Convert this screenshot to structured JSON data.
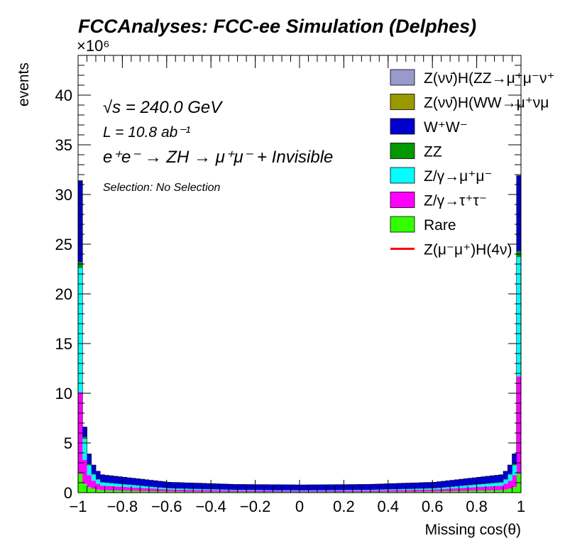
{
  "chart_data": {
    "type": "histogram-stacked",
    "title": "FCCAnalyses: FCC-ee Simulation (Delphes)",
    "xlabel": "Missing cos(θ)",
    "ylabel": "events",
    "y_multiplier": "×10⁶",
    "xlim": [
      -1,
      1
    ],
    "ylim": [
      0,
      44
    ],
    "x_ticks": [
      "−1",
      "−0.8",
      "−0.6",
      "−0.4",
      "−0.2",
      "0",
      "0.2",
      "0.4",
      "0.6",
      "0.8",
      "1"
    ],
    "y_ticks": [
      "0",
      "5",
      "10",
      "15",
      "20",
      "25",
      "30",
      "35",
      "40"
    ],
    "annotations": {
      "sqrt_s": "√s = 240.0 GeV",
      "lumi": "L = 10.8 ab⁻¹",
      "process": "e⁺e⁻ → ZH → μ⁺μ⁻ + Invisible",
      "selection": "Selection: No Selection"
    },
    "legend_position": "top-right",
    "legend": [
      {
        "label": "Z(νν̄)H(ZZ→μ⁺μ⁻ν⁺",
        "color": "#9999cc",
        "kind": "fill"
      },
      {
        "label": "Z(νν̄)H(WW→μ⁺νμ",
        "color": "#999900",
        "kind": "fill"
      },
      {
        "label": "W⁺W⁻",
        "color": "#0000cc",
        "kind": "fill"
      },
      {
        "label": "ZZ",
        "color": "#009900",
        "kind": "fill"
      },
      {
        "label": "Z/γ→μ⁺μ⁻",
        "color": "#00ffff",
        "kind": "fill"
      },
      {
        "label": "Z/γ→τ⁺τ⁻",
        "color": "#ff00ff",
        "kind": "fill"
      },
      {
        "label": "Rare",
        "color": "#33ff00",
        "kind": "fill"
      },
      {
        "label": "Z(μ⁻μ⁺)H(4ν)",
        "color": "#ff0000",
        "kind": "line"
      }
    ],
    "bins": 100,
    "stack_order_bottom_to_top": [
      "Rare",
      "Z/γ→τ⁺τ⁻",
      "Z/γ→μ⁺μ⁻",
      "ZZ",
      "W⁺W⁻"
    ],
    "bin_x": [
      -1.0,
      -0.98,
      -0.96,
      -0.94,
      -0.92,
      -0.9,
      -0.6,
      -0.3,
      0.0,
      0.3,
      0.6,
      0.9,
      0.92,
      0.94,
      0.96,
      0.98
    ],
    "series": [
      {
        "name": "Rare",
        "color": "#33ff00",
        "values": [
          1.9,
          0.9,
          0.55,
          0.4,
          0.3,
          0.25,
          0.12,
          0.08,
          0.06,
          0.08,
          0.12,
          0.25,
          0.3,
          0.4,
          0.55,
          1.9
        ]
      },
      {
        "name": "Z/γ→τ⁺τ⁻",
        "color": "#ff00ff",
        "values": [
          8.2,
          2.4,
          1.2,
          0.8,
          0.6,
          0.45,
          0.2,
          0.12,
          0.1,
          0.12,
          0.2,
          0.45,
          0.6,
          0.8,
          1.2,
          9.8
        ]
      },
      {
        "name": "Z/γ→μ⁺μ⁻",
        "color": "#00ffff",
        "values": [
          12.5,
          2.1,
          1.0,
          0.6,
          0.4,
          0.3,
          0.1,
          0.06,
          0.05,
          0.06,
          0.1,
          0.3,
          0.4,
          0.6,
          1.0,
          12.0
        ]
      },
      {
        "name": "ZZ",
        "color": "#009900",
        "values": [
          0.6,
          0.2,
          0.1,
          0.08,
          0.06,
          0.05,
          0.03,
          0.02,
          0.02,
          0.02,
          0.03,
          0.05,
          0.06,
          0.08,
          0.1,
          0.6
        ]
      },
      {
        "name": "W⁺W⁻",
        "color": "#0000cc",
        "values": [
          8.2,
          1.0,
          1.05,
          0.9,
          0.8,
          0.75,
          0.6,
          0.55,
          0.55,
          0.55,
          0.6,
          0.75,
          0.8,
          0.9,
          1.05,
          7.6
        ]
      }
    ]
  }
}
